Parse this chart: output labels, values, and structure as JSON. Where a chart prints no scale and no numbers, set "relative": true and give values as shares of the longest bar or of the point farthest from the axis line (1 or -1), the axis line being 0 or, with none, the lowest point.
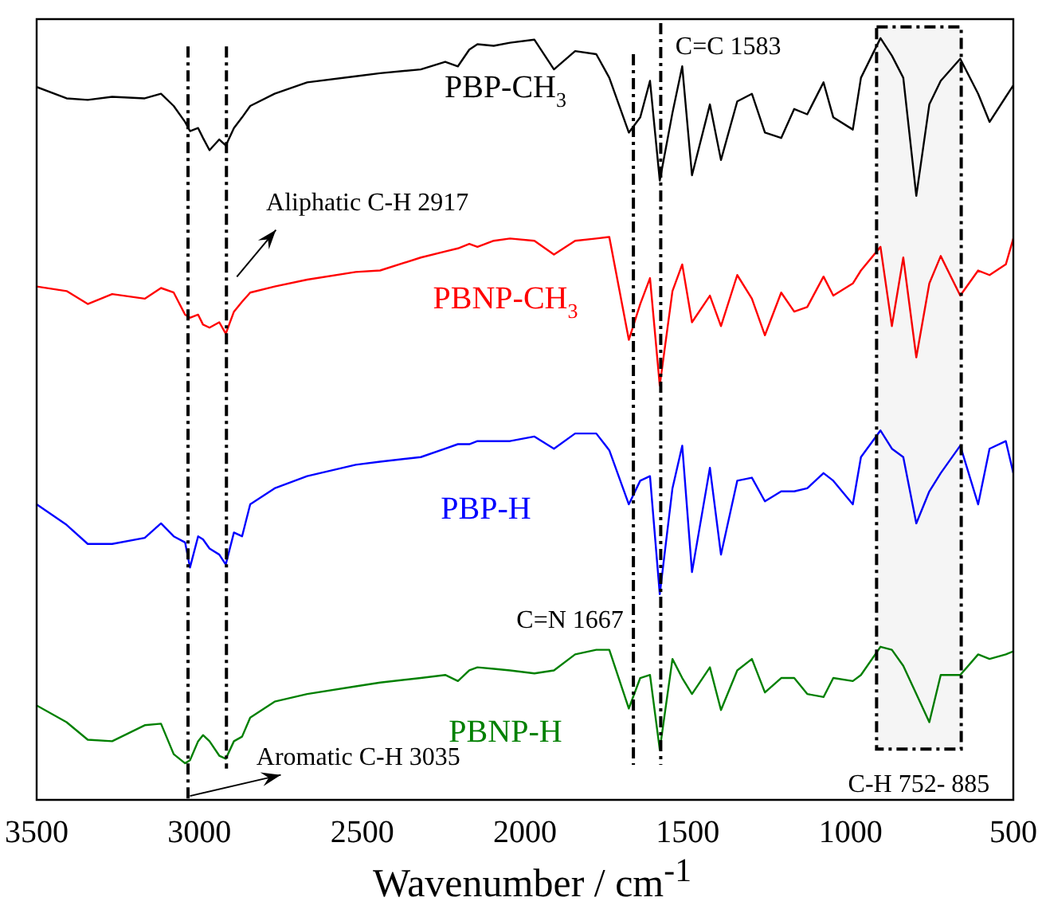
{
  "chart_data": {
    "type": "line",
    "relative": true,
    "xlabel": "Wavenumber / cm$^{-1}$",
    "xlim": [
      3500,
      500
    ],
    "xticks": [
      3500,
      3000,
      2500,
      2000,
      1500,
      1000,
      500
    ],
    "grid": false,
    "legend": false,
    "marker": "none",
    "line_style": "solid",
    "x": [
      3500,
      3408,
      3343,
      3268,
      3168,
      3118,
      3079,
      3044,
      3029,
      3004,
      2989,
      2969,
      2939,
      2919,
      2894,
      2869,
      2844,
      2769,
      2669,
      2520,
      2445,
      2320,
      2245,
      2206,
      2171,
      2146,
      2096,
      2046,
      1971,
      1911,
      1846,
      1781,
      1741,
      1681,
      1646,
      1616,
      1586,
      1547,
      1517,
      1487,
      1432,
      1398,
      1348,
      1303,
      1263,
      1213,
      1173,
      1133,
      1083,
      1053,
      993,
      968,
      908,
      873,
      838,
      798,
      758,
      723,
      663,
      608,
      573,
      523,
      500
    ],
    "series": [
      {
        "name": "PBP-CH$_{3}$",
        "color": "#000000",
        "values": [
          0.936,
          0.921,
          0.919,
          0.923,
          0.921,
          0.927,
          0.911,
          0.89,
          0.878,
          0.882,
          0.869,
          0.853,
          0.867,
          0.859,
          0.882,
          0.896,
          0.911,
          0.927,
          0.942,
          0.95,
          0.954,
          0.959,
          0.969,
          0.963,
          0.985,
          0.992,
          0.99,
          0.994,
          0.998,
          0.959,
          0.983,
          0.979,
          0.948,
          0.876,
          0.896,
          0.944,
          0.813,
          0.902,
          0.963,
          0.82,
          0.913,
          0.84,
          0.917,
          0.927,
          0.876,
          0.869,
          0.907,
          0.9,
          0.942,
          0.896,
          0.88,
          0.948,
          1.0,
          0.977,
          0.948,
          0.793,
          0.913,
          0.944,
          0.973,
          0.927,
          0.89,
          0.923,
          0.938
        ]
      },
      {
        "name": "PBNP-CH$_{3}$",
        "color": "#ff0000",
        "values": [
          0.674,
          0.668,
          0.651,
          0.664,
          0.658,
          0.672,
          0.666,
          0.637,
          0.633,
          0.637,
          0.624,
          0.62,
          0.627,
          0.612,
          0.641,
          0.654,
          0.666,
          0.674,
          0.683,
          0.693,
          0.695,
          0.712,
          0.72,
          0.724,
          0.73,
          0.726,
          0.734,
          0.737,
          0.734,
          0.716,
          0.734,
          0.737,
          0.739,
          0.604,
          0.651,
          0.685,
          0.544,
          0.668,
          0.703,
          0.627,
          0.662,
          0.622,
          0.689,
          0.658,
          0.61,
          0.666,
          0.641,
          0.647,
          0.687,
          0.662,
          0.678,
          0.695,
          0.726,
          0.622,
          0.712,
          0.581,
          0.678,
          0.714,
          0.662,
          0.695,
          0.689,
          0.703,
          0.737
        ]
      },
      {
        "name": "PBP-H",
        "color": "#0000ff",
        "values": [
          0.388,
          0.361,
          0.336,
          0.336,
          0.344,
          0.363,
          0.346,
          0.338,
          0.305,
          0.346,
          0.342,
          0.33,
          0.322,
          0.309,
          0.351,
          0.346,
          0.388,
          0.409,
          0.425,
          0.44,
          0.444,
          0.45,
          0.461,
          0.467,
          0.467,
          0.471,
          0.471,
          0.471,
          0.477,
          0.461,
          0.481,
          0.481,
          0.459,
          0.388,
          0.419,
          0.425,
          0.27,
          0.409,
          0.465,
          0.299,
          0.436,
          0.322,
          0.419,
          0.423,
          0.392,
          0.405,
          0.405,
          0.409,
          0.429,
          0.419,
          0.388,
          0.45,
          0.485,
          0.461,
          0.45,
          0.363,
          0.405,
          0.429,
          0.465,
          0.388,
          0.461,
          0.471,
          0.429
        ]
      },
      {
        "name": "PBNP-H",
        "color": "#008000",
        "values": [
          0.124,
          0.102,
          0.079,
          0.077,
          0.098,
          0.1,
          0.06,
          0.048,
          0.052,
          0.077,
          0.085,
          0.077,
          0.058,
          0.054,
          0.077,
          0.083,
          0.108,
          0.129,
          0.139,
          0.149,
          0.154,
          0.16,
          0.164,
          0.156,
          0.17,
          0.174,
          0.172,
          0.17,
          0.166,
          0.17,
          0.191,
          0.197,
          0.197,
          0.12,
          0.16,
          0.164,
          0.066,
          0.185,
          0.16,
          0.139,
          0.174,
          0.118,
          0.17,
          0.185,
          0.141,
          0.16,
          0.16,
          0.139,
          0.135,
          0.16,
          0.156,
          0.164,
          0.201,
          0.197,
          0.176,
          0.139,
          0.102,
          0.164,
          0.164,
          0.191,
          0.185,
          0.191,
          0.195
        ]
      }
    ],
    "ref_lines": [
      {
        "axis": "x",
        "value": 3035,
        "label": "Aromatic C-H 3035",
        "color": "#000000",
        "line_style": "dashed"
      },
      {
        "axis": "x",
        "value": 2917,
        "label": "Aliphatic C-H 2917",
        "color": "#000000",
        "line_style": "dashed"
      },
      {
        "axis": "x",
        "value": 1667,
        "label": "C=N 1667",
        "color": "#000000",
        "line_style": "dashed"
      },
      {
        "axis": "x",
        "value": 1583,
        "label": "C=C 1583",
        "color": "#000000",
        "line_style": "dashed"
      }
    ],
    "bands": [
      {
        "axis": "x",
        "from": 920,
        "to": 660,
        "label": "C-H 752- 885",
        "color": "#000000"
      }
    ]
  }
}
